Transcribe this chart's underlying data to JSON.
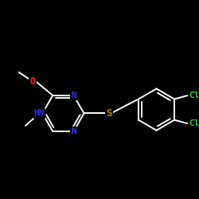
{
  "background_color": "#000000",
  "bond_color": "#ffffff",
  "atom_colors": {
    "N": "#3333ff",
    "O": "#ff2200",
    "S": "#cc8800",
    "Cl": "#33cc33",
    "C": "#ffffff"
  },
  "figsize": [
    2.5,
    2.5
  ],
  "dpi": 100
}
